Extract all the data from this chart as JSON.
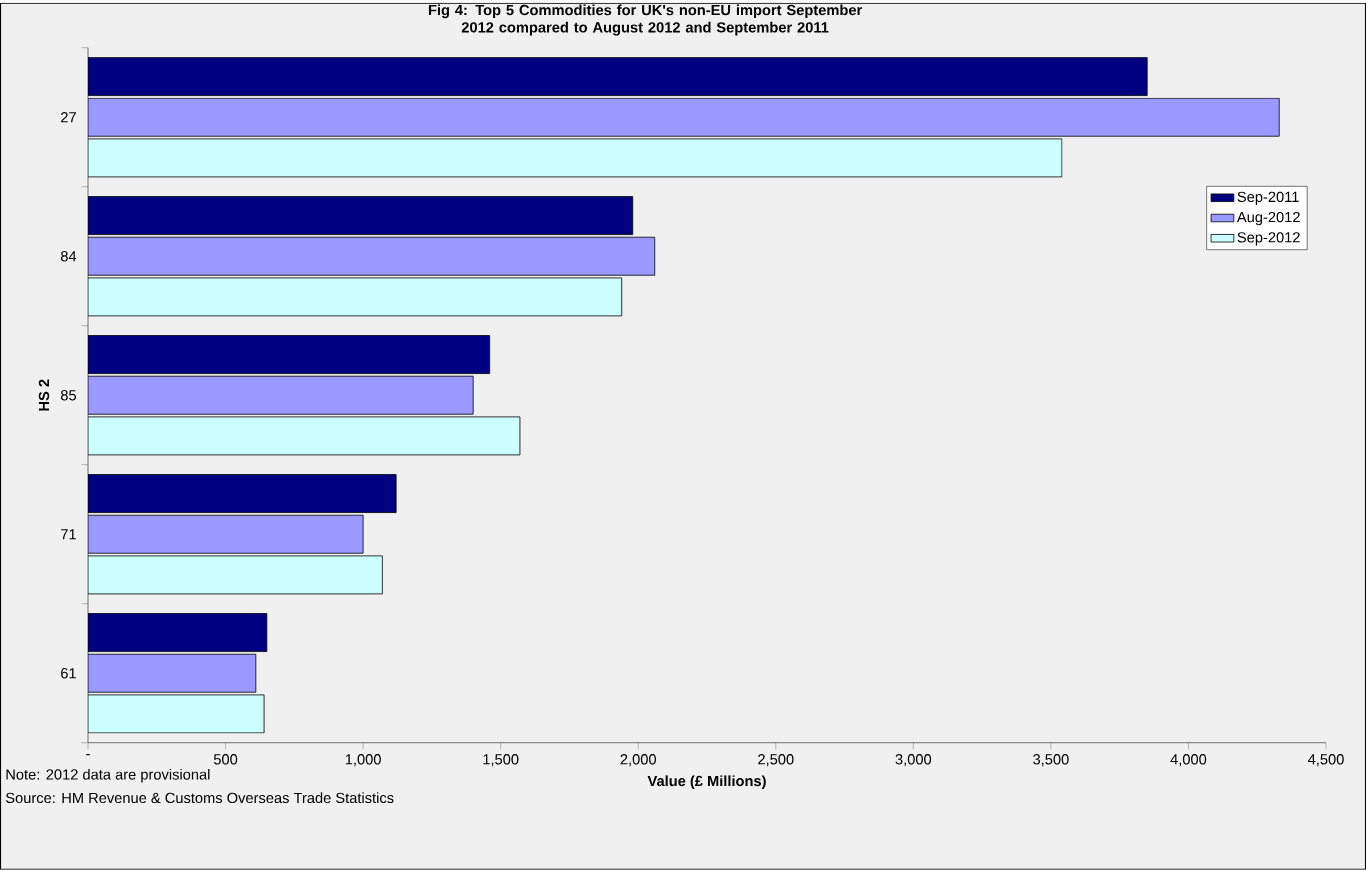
{
  "chart_data": {
    "type": "bar",
    "orientation": "horizontal",
    "title": "Fig 4: Top 5 Commodities for UK's non-EU import September 2012 compared to August 2012 and September 2011",
    "xlabel": "Value (£ Millions)",
    "ylabel": "HS 2",
    "categories": [
      "27",
      "84",
      "85",
      "71",
      "61"
    ],
    "series": [
      {
        "name": "Sep-2011",
        "color": "#000080",
        "values": [
          3850,
          1980,
          1460,
          1120,
          650
        ]
      },
      {
        "name": "Aug-2012",
        "color": "#9999ff",
        "values": [
          4330,
          2060,
          1400,
          1000,
          610
        ]
      },
      {
        "name": "Sep-2012",
        "color": "#ccffff",
        "values": [
          3540,
          1940,
          1570,
          1070,
          640
        ]
      }
    ],
    "xlim": [
      0,
      4500
    ],
    "xticks": [
      {
        "value": 0,
        "label": "-"
      },
      500,
      {
        "value": 1000,
        "label": "1,000"
      },
      {
        "value": 1500,
        "label": "1,500"
      },
      {
        "value": 2000,
        "label": "2,000"
      },
      {
        "value": 2500,
        "label": "2,500"
      },
      {
        "value": 3000,
        "label": "3,000"
      },
      {
        "value": 3500,
        "label": "3,500"
      },
      {
        "value": 4000,
        "label": "4,000"
      },
      {
        "value": 4500,
        "label": "4,500"
      }
    ],
    "legend": "right",
    "grid": false,
    "annotations": [
      "Note: 2012 data are provisional",
      "Source: HM Revenue & Customs Overseas Trade Statistics"
    ]
  }
}
